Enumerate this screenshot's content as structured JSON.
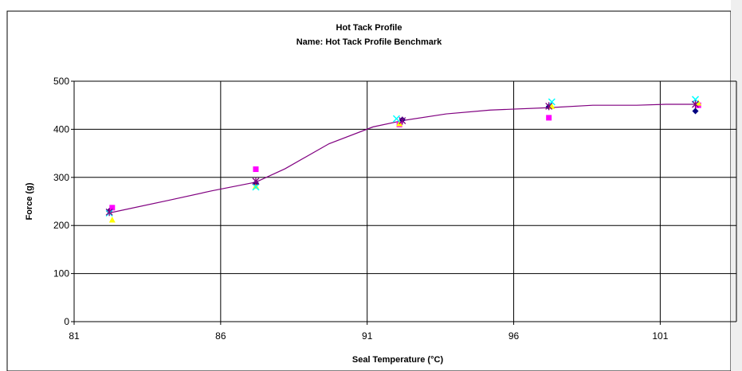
{
  "chart_data": {
    "type": "scatter",
    "title": "Hot Tack Profile",
    "subtitle": "Name: Hot Tack Profile Benchmark",
    "xlabel": "Seal Temperature (°C)",
    "ylabel": "Force (g)",
    "xlim": [
      81,
      103.6
    ],
    "ylim": [
      0,
      500
    ],
    "xticks": [
      81,
      86,
      91,
      96,
      101
    ],
    "yticks": [
      0,
      100,
      200,
      300,
      400,
      500
    ],
    "grid": true,
    "legend": "none",
    "series": [
      {
        "marker": "diamond",
        "color": "#000080",
        "points": [
          [
            82.2,
            230
          ],
          [
            87.2,
            288
          ],
          [
            92.2,
            420
          ],
          [
            97.2,
            447
          ],
          [
            102.2,
            438
          ]
        ]
      },
      {
        "marker": "square",
        "color": "#FF00FF",
        "points": [
          [
            82.3,
            237
          ],
          [
            87.2,
            317
          ],
          [
            92.1,
            410
          ],
          [
            97.2,
            424
          ],
          [
            102.3,
            450
          ]
        ]
      },
      {
        "marker": "triangle",
        "color": "#FFFF00",
        "points": [
          [
            82.3,
            212
          ],
          [
            87.2,
            282
          ],
          [
            92.1,
            412
          ],
          [
            97.3,
            448
          ],
          [
            102.3,
            455
          ]
        ]
      },
      {
        "marker": "x",
        "color": "#00FFFF",
        "points": [
          [
            82.2,
            226
          ],
          [
            87.2,
            280
          ],
          [
            92.0,
            422
          ],
          [
            97.3,
            457
          ],
          [
            102.2,
            462
          ]
        ]
      },
      {
        "marker": "asterisk",
        "color": "#800080",
        "points": [
          [
            82.2,
            228
          ],
          [
            87.2,
            292
          ],
          [
            92.2,
            418
          ],
          [
            97.2,
            448
          ],
          [
            102.2,
            452
          ]
        ]
      }
    ],
    "trendline": {
      "color": "#800080",
      "points": [
        [
          82.2,
          226
        ],
        [
          84.2,
          252
        ],
        [
          85.7,
          272
        ],
        [
          87.2,
          290
        ],
        [
          88.2,
          318
        ],
        [
          89.7,
          370
        ],
        [
          91.2,
          405
        ],
        [
          92.2,
          418
        ],
        [
          93.7,
          432
        ],
        [
          95.2,
          440
        ],
        [
          97.2,
          445
        ],
        [
          98.7,
          450
        ],
        [
          100.2,
          450
        ],
        [
          101.2,
          452
        ],
        [
          102.2,
          452
        ]
      ]
    }
  }
}
